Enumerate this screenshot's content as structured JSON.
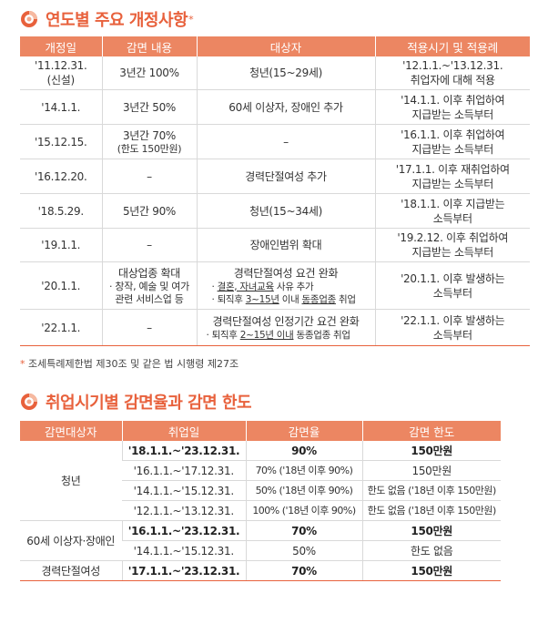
{
  "section1": {
    "title": "연도별 주요 개정사항",
    "title_mark": "*",
    "headers": [
      "개정일",
      "감면 내용",
      "대상자",
      "적용시기 및 적용례"
    ],
    "rows": [
      {
        "date": "'11.12.31.",
        "date_sub": "(신설)",
        "content": "3년간 100%",
        "target": "청년(15~29세)",
        "apply": "'12.1.1.~'13.12.31.",
        "apply_sub": "취업자에 대해 적용"
      },
      {
        "date": "'14.1.1.",
        "content": "3년간 50%",
        "target": "60세 이상자, 장애인 추가",
        "apply": "'14.1.1. 이후 취업하여",
        "apply_sub": "지급받는 소득부터"
      },
      {
        "date": "'15.12.15.",
        "content": "3년간 70%",
        "content_sub": "(한도 150만원)",
        "target": "–",
        "apply": "'16.1.1. 이후 취업하여",
        "apply_sub": "지급받는 소득부터"
      },
      {
        "date": "'16.12.20.",
        "content": "–",
        "target": "경력단절여성 추가",
        "apply": "'17.1.1. 이후 재취업하여",
        "apply_sub": "지급받는 소득부터"
      },
      {
        "date": "'18.5.29.",
        "content": "5년간 90%",
        "target": "청년(15~34세)",
        "apply": "'18.1.1. 이후 지급받는",
        "apply_sub": "소득부터"
      },
      {
        "date": "'19.1.1.",
        "content": "–",
        "target": "장애인범위 확대",
        "apply": "'19.2.12. 이후 취업하여",
        "apply_sub": "지급받는 소득부터"
      },
      {
        "date": "'20.1.1.",
        "content": "대상업종 확대",
        "content_sub1": "· 창작, 예술 및 여가",
        "content_sub2": "관련 서비스업 등",
        "target": "경력단절여성 요건 완화",
        "target_sub1a": "· ",
        "target_sub1b": "결혼, 자녀교육",
        "target_sub1c": " 사유 추가",
        "target_sub2a": "· 퇴직후 ",
        "target_sub2b": "3~15년",
        "target_sub2c": " 이내 ",
        "target_sub2d": "동종업종",
        "target_sub2e": " 취업",
        "apply": "'20.1.1. 이후 발생하는",
        "apply_sub": "소득부터"
      },
      {
        "date": "'22.1.1.",
        "content": "–",
        "target": "경력단절여성 인정기간 요건 완화",
        "target_sub2a": "· 퇴직후 ",
        "target_sub2b": "2~15년 이내",
        "target_sub2c": " 동종업종 취업",
        "apply": "'22.1.1. 이후 발생하는",
        "apply_sub": "소득부터"
      }
    ],
    "note_mark": "*",
    "note": "조세특례제한법 제30조 및 같은 법 시행령 제27조"
  },
  "section2": {
    "title": "취업시기별 감면율과 감면 한도",
    "headers": [
      "감면대상자",
      "취업일",
      "감면율",
      "감면 한도"
    ],
    "groups": [
      {
        "name": "청년",
        "rows": [
          {
            "period": "'18.1.1.~'23.12.31.",
            "rate": "90%",
            "limit": "150만원"
          },
          {
            "period": "'16.1.1.~'17.12.31.",
            "rate": "70% ('18년 이후 90%)",
            "limit": "150만원"
          },
          {
            "period": "'14.1.1.~'15.12.31.",
            "rate": "50% ('18년 이후 90%)",
            "limit": "한도 없음 ('18년 이후 150만원)"
          },
          {
            "period": "'12.1.1.~'13.12.31.",
            "rate": "100% ('18년 이후 90%)",
            "limit": "한도 없음 ('18년 이후 150만원)"
          }
        ]
      },
      {
        "name": "60세 이상자·장애인",
        "rows": [
          {
            "period": "'16.1.1.~'23.12.31.",
            "rate": "70%",
            "limit": "150만원"
          },
          {
            "period": "'14.1.1.~'15.12.31.",
            "rate": "50%",
            "limit": "한도 없음"
          }
        ]
      },
      {
        "name": "경력단절여성",
        "rows": [
          {
            "period": "'17.1.1.~'23.12.31.",
            "rate": "70%",
            "limit": "150만원"
          }
        ]
      }
    ]
  },
  "colors": {
    "accent": "#e8613c",
    "header_bg": "#ec8662"
  },
  "icons": {
    "section_logo": "orange-ring-logo-icon"
  }
}
